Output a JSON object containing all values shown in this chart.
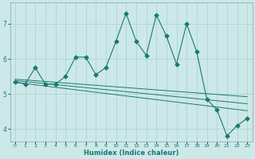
{
  "xlabel": "Humidex (Indice chaleur)",
  "background_color": "#cce8e8",
  "grid_color": "#aad0d0",
  "line_color": "#1a7a6e",
  "xlim": [
    -0.5,
    23.5
  ],
  "ylim": [
    3.65,
    7.6
  ],
  "xticks": [
    0,
    1,
    2,
    3,
    4,
    5,
    6,
    7,
    8,
    9,
    10,
    11,
    12,
    13,
    14,
    15,
    16,
    17,
    18,
    19,
    20,
    21,
    22,
    23
  ],
  "yticks": [
    4,
    5,
    6,
    7
  ],
  "main_x": [
    0,
    1,
    2,
    3,
    4,
    5,
    6,
    7,
    8,
    9,
    10,
    11,
    12,
    13,
    14,
    15,
    16,
    17,
    18,
    19,
    20,
    21,
    22,
    23
  ],
  "main_y": [
    5.35,
    5.28,
    5.75,
    5.28,
    5.28,
    5.5,
    6.05,
    6.05,
    5.55,
    5.75,
    6.5,
    7.3,
    6.5,
    6.1,
    7.25,
    6.65,
    5.85,
    7.0,
    6.2,
    4.85,
    4.55,
    3.8,
    4.1,
    4.3
  ],
  "trend1_x": [
    0,
    23
  ],
  "trend1_y": [
    5.42,
    4.92
  ],
  "trend2_x": [
    0,
    23
  ],
  "trend2_y": [
    5.38,
    4.72
  ],
  "trend3_x": [
    0,
    23
  ],
  "trend3_y": [
    5.33,
    4.52
  ],
  "marker": "D",
  "markersize": 2.5,
  "linewidth": 0.8,
  "trend_linewidth": 0.7
}
